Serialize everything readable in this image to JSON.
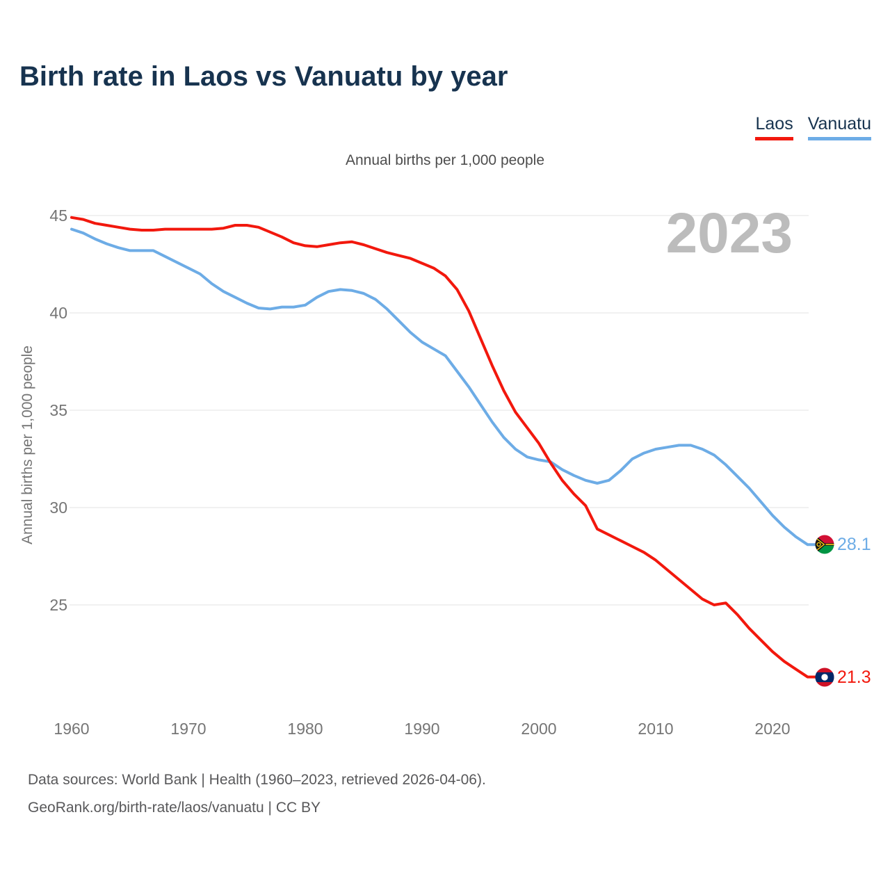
{
  "page": {
    "background": "#ffffff",
    "title_color": "#17334f",
    "axis_text_color": "#757575",
    "subtitle_color": "#4d4d4d",
    "footer_color": "#58585a",
    "watermark_color": "#bcbcbc",
    "grid_color": "#e3e3e3"
  },
  "header": {
    "title": "Birth rate in Laos vs Vanuatu by year"
  },
  "chart_data": {
    "type": "line",
    "title": "Birth rate in Laos vs Vanuatu by year",
    "subtitle": "Annual births per 1,000 people",
    "ylabel": "Annual births per 1,000 people",
    "watermark": "2023",
    "grid": true,
    "legend_position": "top-right",
    "xlim": [
      1960,
      2023
    ],
    "ylim": [
      21,
      45
    ],
    "x_ticks": [
      1960,
      1970,
      1980,
      1990,
      2000,
      2010,
      2020
    ],
    "y_ticks": [
      25,
      30,
      35,
      40,
      45
    ],
    "x": [
      1960,
      1961,
      1962,
      1963,
      1964,
      1965,
      1966,
      1967,
      1968,
      1969,
      1970,
      1971,
      1972,
      1973,
      1974,
      1975,
      1976,
      1977,
      1978,
      1979,
      1980,
      1981,
      1982,
      1983,
      1984,
      1985,
      1986,
      1987,
      1988,
      1989,
      1990,
      1991,
      1992,
      1993,
      1994,
      1995,
      1996,
      1997,
      1998,
      1999,
      2000,
      2001,
      2002,
      2003,
      2004,
      2005,
      2006,
      2007,
      2008,
      2009,
      2010,
      2011,
      2012,
      2013,
      2014,
      2015,
      2016,
      2017,
      2018,
      2019,
      2020,
      2021,
      2022,
      2023
    ],
    "series": [
      {
        "name": "Laos",
        "color": "#f2180d",
        "end_label": "21.3",
        "values": [
          44.9,
          44.8,
          44.6,
          44.5,
          44.4,
          44.3,
          44.25,
          44.25,
          44.3,
          44.3,
          44.3,
          44.3,
          44.3,
          44.35,
          44.5,
          44.5,
          44.4,
          44.15,
          43.9,
          43.6,
          43.45,
          43.4,
          43.5,
          43.6,
          43.65,
          43.5,
          43.3,
          43.1,
          42.95,
          42.8,
          42.55,
          42.3,
          41.9,
          41.2,
          40.1,
          38.7,
          37.3,
          36.0,
          34.9,
          34.1,
          33.3,
          32.3,
          31.4,
          30.7,
          30.1,
          28.9,
          28.6,
          28.3,
          28.0,
          27.7,
          27.3,
          26.8,
          26.3,
          25.8,
          25.3,
          25.0,
          25.1,
          24.5,
          23.8,
          23.2,
          22.6,
          22.1,
          21.7,
          21.3
        ]
      },
      {
        "name": "Vanuatu",
        "color": "#6dace6",
        "end_label": "28.1",
        "values": [
          44.3,
          44.1,
          43.8,
          43.55,
          43.35,
          43.2,
          43.2,
          43.2,
          42.9,
          42.6,
          42.3,
          42.0,
          41.5,
          41.1,
          40.8,
          40.5,
          40.25,
          40.2,
          40.3,
          40.3,
          40.4,
          40.8,
          41.1,
          41.2,
          41.15,
          41.0,
          40.7,
          40.2,
          39.6,
          39.0,
          38.5,
          38.15,
          37.8,
          37.0,
          36.2,
          35.3,
          34.4,
          33.6,
          33.0,
          32.6,
          32.45,
          32.35,
          31.95,
          31.65,
          31.4,
          31.25,
          31.4,
          31.9,
          32.5,
          32.8,
          33.0,
          33.1,
          33.2,
          33.2,
          33.0,
          32.7,
          32.2,
          31.6,
          31.0,
          30.3,
          29.6,
          29.0,
          28.5,
          28.1
        ]
      }
    ]
  },
  "flags": {
    "vanuatu": {
      "icon": "vanuatu-flag-icon",
      "red": "#d21034",
      "green": "#009543",
      "black": "#141414",
      "yellow": "#fdce12"
    },
    "laos": {
      "icon": "laos-flag-icon",
      "red": "#ce1126",
      "blue": "#002868",
      "white": "#ffffff"
    }
  },
  "footer": {
    "line1": "Data sources: World Bank | Health (1960–2023, retrieved 2026-04-06).",
    "line2": "GeoRank.org/birth-rate/laos/vanuatu | CC BY"
  }
}
